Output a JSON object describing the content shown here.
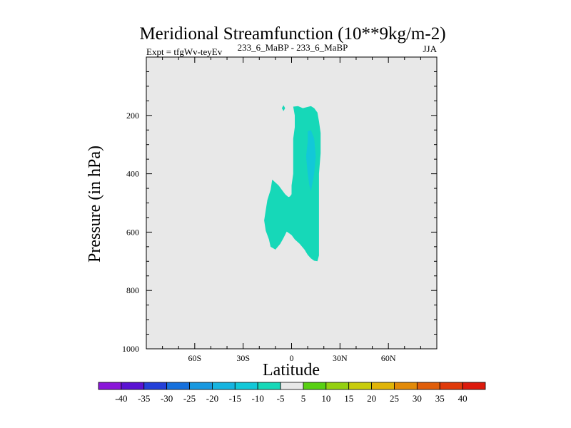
{
  "chart_data": {
    "type": "contour",
    "title": "Meridional Streamfunction (10**9kg/m-2)",
    "subtitle_left": "Expt = tfgWv-teyEv",
    "subtitle_center": "233_6_MaBP - 233_6_MaBP",
    "subtitle_right": "JJA",
    "xlabel": "Latitude",
    "ylabel": "Pressure (in hPa)",
    "xlim": [
      -90,
      90
    ],
    "ylim": [
      1000,
      0
    ],
    "x_ticks": [
      {
        "value": -60,
        "label": "60S"
      },
      {
        "value": -30,
        "label": "30S"
      },
      {
        "value": 0,
        "label": "0"
      },
      {
        "value": 30,
        "label": "30N"
      },
      {
        "value": 60,
        "label": "60N"
      }
    ],
    "y_ticks": [
      {
        "value": 200,
        "label": "200"
      },
      {
        "value": 400,
        "label": "400"
      },
      {
        "value": 600,
        "label": "600"
      },
      {
        "value": 800,
        "label": "800"
      },
      {
        "value": 1000,
        "label": "1000"
      }
    ],
    "background_color": "#e8e8e8",
    "colorbar": {
      "labels": [
        "-40",
        "-35",
        "-30",
        "-25",
        "-20",
        "-15",
        "-10",
        "-5",
        "5",
        "10",
        "15",
        "20",
        "25",
        "30",
        "35",
        "40"
      ],
      "colors": [
        "#8a17d8",
        "#5a12d2",
        "#2440d8",
        "#1670dc",
        "#1898e0",
        "#16b4e0",
        "#12c8d8",
        "#16d8b8",
        "#e8e8e8",
        "#58d012",
        "#94d010",
        "#c8cc0c",
        "#e0b408",
        "#e28a08",
        "#e05e0a",
        "#e03a0a",
        "#dc1a0c"
      ]
    },
    "regions": [
      {
        "name": "contour-region-main",
        "color": "#16d8b8",
        "points": [
          [
            1,
            170
          ],
          [
            4,
            168
          ],
          [
            7,
            175
          ],
          [
            12,
            168
          ],
          [
            14,
            175
          ],
          [
            16,
            190
          ],
          [
            17,
            220
          ],
          [
            18,
            260
          ],
          [
            18,
            330
          ],
          [
            17,
            400
          ],
          [
            17,
            480
          ],
          [
            17,
            520
          ],
          [
            17,
            560
          ],
          [
            17,
            600
          ],
          [
            17,
            640
          ],
          [
            17,
            680
          ],
          [
            16,
            700
          ],
          [
            14,
            698
          ],
          [
            12,
            690
          ],
          [
            10,
            678
          ],
          [
            8,
            660
          ],
          [
            5,
            640
          ],
          [
            2,
            625
          ],
          [
            0,
            610
          ],
          [
            -3,
            598
          ],
          [
            -5,
            620
          ],
          [
            -7,
            640
          ],
          [
            -10,
            660
          ],
          [
            -13,
            650
          ],
          [
            -14,
            625
          ],
          [
            -16,
            595
          ],
          [
            -17,
            560
          ],
          [
            -16,
            525
          ],
          [
            -15,
            490
          ],
          [
            -13,
            455
          ],
          [
            -12,
            420
          ],
          [
            -10,
            430
          ],
          [
            -8,
            440
          ],
          [
            -6,
            455
          ],
          [
            -4,
            470
          ],
          [
            -2,
            480
          ],
          [
            -1,
            478
          ],
          [
            0,
            470
          ],
          [
            0,
            440
          ],
          [
            1,
            400
          ],
          [
            1,
            360
          ],
          [
            1,
            320
          ],
          [
            1,
            280
          ],
          [
            2,
            240
          ],
          [
            2,
            200
          ]
        ]
      },
      {
        "name": "contour-region-small",
        "color": "#16d8b8",
        "points": [
          [
            -6,
            175
          ],
          [
            -5,
            165
          ],
          [
            -4,
            175
          ],
          [
            -5,
            185
          ]
        ]
      },
      {
        "name": "contour-region-core",
        "color": "#12c8d8",
        "points": [
          [
            10,
            255
          ],
          [
            12,
            250
          ],
          [
            14,
            280
          ],
          [
            15,
            340
          ],
          [
            14,
            400
          ],
          [
            13,
            430
          ],
          [
            12,
            460
          ],
          [
            11,
            440
          ],
          [
            10,
            400
          ],
          [
            9,
            340
          ],
          [
            10,
            290
          ]
        ]
      }
    ]
  }
}
